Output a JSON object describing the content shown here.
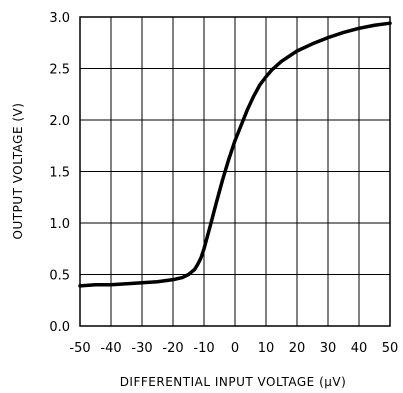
{
  "chart_data": {
    "type": "line",
    "xlabel": "DIFFERENTIAL INPUT VOLTAGE (μV)",
    "ylabel": "OUTPUT VOLTAGE (V)",
    "xlim": [
      -50,
      50
    ],
    "ylim": [
      0.0,
      3.0
    ],
    "x_ticks": [
      -50,
      -40,
      -30,
      -20,
      -10,
      0,
      10,
      20,
      30,
      40,
      50
    ],
    "y_ticks": [
      0.0,
      0.5,
      1.0,
      1.5,
      2.0,
      2.5,
      3.0
    ],
    "x_tick_labels": [
      "-50",
      "-40",
      "-30",
      "-20",
      "-10",
      "0",
      "10",
      "20",
      "30",
      "40",
      "50"
    ],
    "y_tick_labels": [
      "0.0",
      "0.5",
      "1.0",
      "1.5",
      "2.0",
      "2.5",
      "3.0"
    ],
    "grid": true,
    "series": [
      {
        "x": [
          -50,
          -45,
          -40,
          -35,
          -30,
          -25,
          -20,
          -17,
          -15,
          -13,
          -12,
          -11,
          -10,
          -8,
          -6,
          -4,
          -2,
          0,
          2,
          4,
          6,
          8,
          10,
          12,
          15,
          20,
          25,
          30,
          35,
          40,
          45,
          50
        ],
        "y": [
          0.39,
          0.4,
          0.4,
          0.41,
          0.42,
          0.43,
          0.45,
          0.47,
          0.5,
          0.55,
          0.6,
          0.66,
          0.75,
          0.97,
          1.2,
          1.42,
          1.62,
          1.8,
          1.95,
          2.1,
          2.23,
          2.34,
          2.42,
          2.49,
          2.57,
          2.67,
          2.74,
          2.8,
          2.85,
          2.89,
          2.92,
          2.94
        ]
      }
    ]
  },
  "colors": {
    "line": "#000000",
    "grid": "#000000",
    "background": "#ffffff"
  }
}
